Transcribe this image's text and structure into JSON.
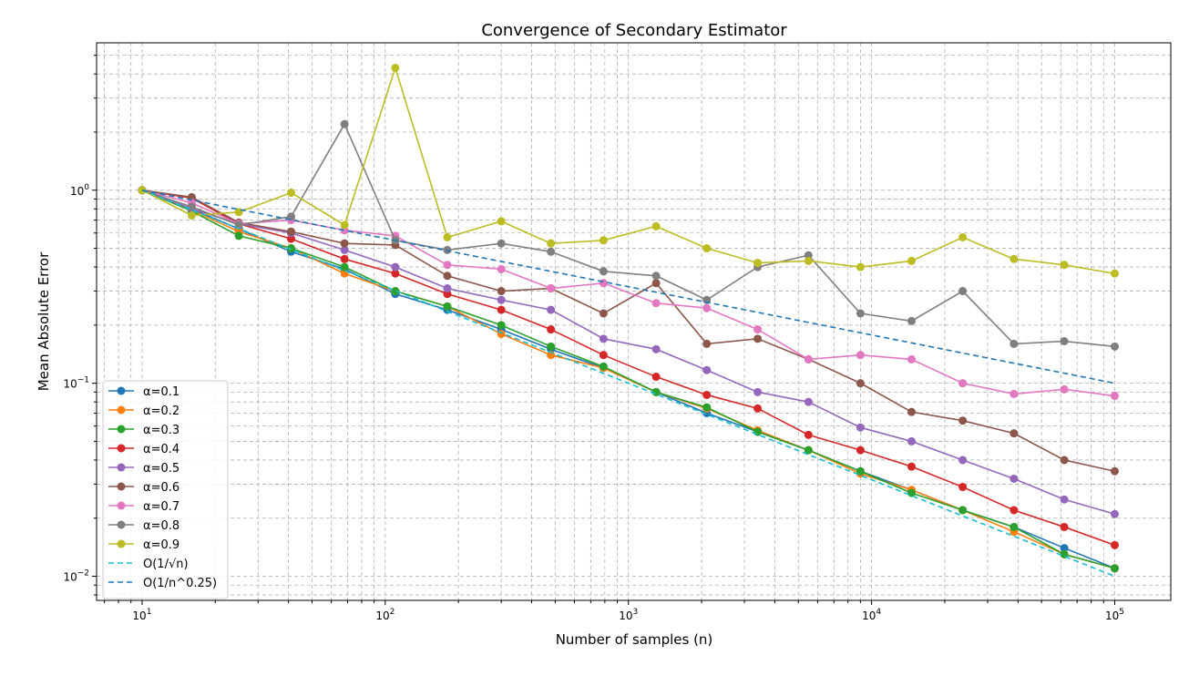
{
  "chart_data": {
    "type": "line",
    "title": "Convergence of Secondary Estimator",
    "xlabel": "Number of samples (n)",
    "ylabel": "Mean Absolute Error",
    "xscale": "log",
    "yscale": "log",
    "xlim": [
      6.5,
      170000
    ],
    "ylim": [
      0.0075,
      5.8
    ],
    "grid": true,
    "legend_position": "lower-left",
    "x_ticks": [
      {
        "value": 10,
        "base": "10",
        "exp": "1"
      },
      {
        "value": 100,
        "base": "10",
        "exp": "2"
      },
      {
        "value": 1000,
        "base": "10",
        "exp": "3"
      },
      {
        "value": 10000,
        "base": "10",
        "exp": "4"
      },
      {
        "value": 100000,
        "base": "10",
        "exp": "5"
      }
    ],
    "y_ticks": [
      {
        "value": 0.01,
        "base": "10",
        "exp": "−2"
      },
      {
        "value": 0.1,
        "base": "10",
        "exp": "−1"
      },
      {
        "value": 1,
        "base": "10",
        "exp": "0"
      }
    ],
    "x": [
      10,
      16,
      25,
      41,
      68,
      110,
      180,
      300,
      480,
      790,
      1300,
      2100,
      3400,
      5500,
      9000,
      14600,
      23700,
      38500,
      62000,
      100000
    ],
    "series": [
      {
        "name": "α=0.1",
        "color": "#1f77b4",
        "style": "solid",
        "marker": true,
        "values": [
          1.0,
          0.8,
          0.63,
          0.48,
          0.39,
          0.29,
          0.24,
          0.19,
          0.15,
          0.12,
          0.09,
          0.07,
          0.056,
          0.045,
          0.035,
          0.028,
          0.022,
          0.018,
          0.014,
          0.011
        ]
      },
      {
        "name": "α=0.2",
        "color": "#ff7f0e",
        "style": "solid",
        "marker": true,
        "values": [
          1.0,
          0.79,
          0.61,
          0.5,
          0.37,
          0.3,
          0.25,
          0.18,
          0.14,
          0.12,
          0.09,
          0.074,
          0.057,
          0.045,
          0.034,
          0.028,
          0.022,
          0.017,
          0.013,
          0.011
        ]
      },
      {
        "name": "α=0.3",
        "color": "#2ca02c",
        "style": "solid",
        "marker": true,
        "values": [
          1.0,
          0.78,
          0.58,
          0.5,
          0.4,
          0.3,
          0.25,
          0.2,
          0.155,
          0.122,
          0.09,
          0.075,
          0.056,
          0.045,
          0.035,
          0.027,
          0.022,
          0.018,
          0.013,
          0.011
        ]
      },
      {
        "name": "α=0.4",
        "color": "#d62728",
        "style": "solid",
        "marker": true,
        "values": [
          1.0,
          0.91,
          0.67,
          0.56,
          0.44,
          0.37,
          0.29,
          0.24,
          0.19,
          0.14,
          0.108,
          0.087,
          0.074,
          0.054,
          0.045,
          0.037,
          0.029,
          0.022,
          0.018,
          0.0145
        ]
      },
      {
        "name": "α=0.5",
        "color": "#9467bd",
        "style": "solid",
        "marker": true,
        "values": [
          1.0,
          0.8,
          0.67,
          0.6,
          0.49,
          0.4,
          0.31,
          0.27,
          0.24,
          0.17,
          0.15,
          0.117,
          0.09,
          0.08,
          0.059,
          0.05,
          0.04,
          0.032,
          0.025,
          0.021
        ]
      },
      {
        "name": "α=0.6",
        "color": "#8c564b",
        "style": "solid",
        "marker": true,
        "values": [
          1.0,
          0.92,
          0.68,
          0.61,
          0.53,
          0.52,
          0.36,
          0.3,
          0.31,
          0.23,
          0.33,
          0.16,
          0.17,
          0.133,
          0.1,
          0.071,
          0.064,
          0.055,
          0.04,
          0.035
        ]
      },
      {
        "name": "α=0.7",
        "color": "#e377c2",
        "style": "solid",
        "marker": true,
        "values": [
          1.0,
          0.86,
          0.67,
          0.7,
          0.62,
          0.58,
          0.41,
          0.39,
          0.31,
          0.33,
          0.26,
          0.245,
          0.19,
          0.133,
          0.14,
          0.133,
          0.1,
          0.088,
          0.093,
          0.086
        ]
      },
      {
        "name": "α=0.8",
        "color": "#7f7f7f",
        "style": "solid",
        "marker": true,
        "values": [
          1.0,
          0.82,
          0.66,
          0.73,
          2.2,
          0.55,
          0.49,
          0.53,
          0.48,
          0.38,
          0.36,
          0.27,
          0.4,
          0.46,
          0.23,
          0.21,
          0.3,
          0.16,
          0.165,
          0.155
        ]
      },
      {
        "name": "α=0.9",
        "color": "#bcbd22",
        "style": "solid",
        "marker": true,
        "values": [
          1.0,
          0.74,
          0.77,
          0.97,
          0.66,
          4.3,
          0.57,
          0.69,
          0.53,
          0.55,
          0.65,
          0.5,
          0.42,
          0.43,
          0.4,
          0.43,
          0.57,
          0.44,
          0.41,
          0.37
        ]
      },
      {
        "name": "O(1/√n)",
        "color": "#17becf",
        "style": "dashed",
        "marker": false,
        "x": [
          10,
          100000
        ],
        "values": [
          1.0,
          0.01
        ]
      },
      {
        "name": "O(1/n^0.25)",
        "color": "#1f77b4",
        "style": "dashed",
        "marker": false,
        "x": [
          10,
          100000
        ],
        "values": [
          1.0,
          0.1
        ]
      }
    ]
  }
}
